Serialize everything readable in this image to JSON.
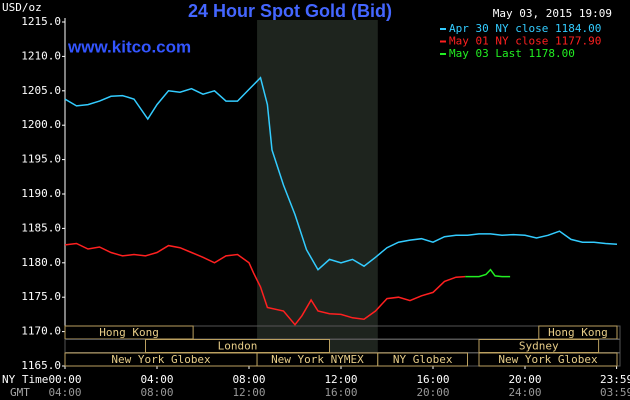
{
  "chart_data": {
    "type": "line",
    "title": "24 Hour Spot Gold (Bid)",
    "timestamp": "May 03, 2015 19:09",
    "site": "www.kitco.com",
    "y_label": "USD/oz",
    "x_label": "NY Time",
    "x2_label": "GMT",
    "xlim": [
      0,
      24
    ],
    "xticks": [
      {
        "value": 0,
        "label": "00:00"
      },
      {
        "value": 4,
        "label": "04:00"
      },
      {
        "value": 8,
        "label": "08:00"
      },
      {
        "value": 12,
        "label": "12:00"
      },
      {
        "value": 16,
        "label": "16:00"
      },
      {
        "value": 20,
        "label": "20:00"
      },
      {
        "value": 23.983,
        "label": "23:59"
      }
    ],
    "x2lim": [
      4,
      28
    ],
    "x2ticks": [
      {
        "value": 4,
        "label": "04:00"
      },
      {
        "value": 8,
        "label": "08:00"
      },
      {
        "value": 12,
        "label": "12:00"
      },
      {
        "value": 16,
        "label": "16:00"
      },
      {
        "value": 20,
        "label": "20:00"
      },
      {
        "value": 24,
        "label": "24:00"
      },
      {
        "value": 27.983,
        "label": "03:59"
      }
    ],
    "ylim": [
      1165,
      1215
    ],
    "yticks": [
      {
        "value": 1165,
        "label": "1165.0"
      },
      {
        "value": 1170,
        "label": "1170.0"
      },
      {
        "value": 1175,
        "label": "1175.0"
      },
      {
        "value": 1180,
        "label": "1180.0"
      },
      {
        "value": 1185,
        "label": "1185.0"
      },
      {
        "value": 1190,
        "label": "1190.0"
      },
      {
        "value": 1195,
        "label": "1195.0"
      },
      {
        "value": 1200,
        "label": "1200.0"
      },
      {
        "value": 1205,
        "label": "1205.0"
      },
      {
        "value": 1210,
        "label": "1210.0"
      },
      {
        "value": 1215,
        "label": "1215.0"
      }
    ],
    "series": [
      {
        "name": "Apr 30 NY close 1184.00",
        "color": "#33ccff",
        "x": [
          0,
          0.5,
          1,
          1.5,
          2,
          2.5,
          3,
          3.6,
          4,
          4.5,
          5,
          5.5,
          6,
          6.5,
          7,
          7.5,
          8,
          8.5,
          8.8,
          9,
          9.5,
          10,
          10.5,
          11,
          11.5,
          12,
          12.5,
          13,
          13.5,
          14,
          14.5,
          15,
          15.5,
          16,
          16.5,
          17,
          17.5,
          18,
          18.5,
          19,
          19.5,
          20,
          20.5,
          21,
          21.5,
          22,
          22.5,
          23,
          23.5,
          24
        ],
        "values": [
          1203.8,
          1202.8,
          1203.0,
          1203.5,
          1204.2,
          1204.3,
          1203.8,
          1200.9,
          1203.0,
          1205.0,
          1204.8,
          1205.3,
          1204.5,
          1205.0,
          1203.5,
          1203.5,
          1205.2,
          1206.9,
          1203.0,
          1196.4,
          1191.3,
          1187.0,
          1181.9,
          1179.0,
          1180.5,
          1180.0,
          1180.5,
          1179.5,
          1180.8,
          1182.2,
          1183.0,
          1183.3,
          1183.5,
          1183.0,
          1183.8,
          1184.0,
          1184.0,
          1184.2,
          1184.2,
          1184.0,
          1184.1,
          1184.0,
          1183.6,
          1184.0,
          1184.6,
          1183.4,
          1183.0,
          1183.0,
          1182.8,
          1182.7
        ]
      },
      {
        "name": "May 01 NY close 1177.90",
        "color": "#ff2020",
        "x": [
          0,
          0.5,
          1,
          1.5,
          2,
          2.5,
          3,
          3.5,
          4,
          4.5,
          5,
          5.5,
          6,
          6.5,
          7,
          7.5,
          8,
          8.2,
          8.5,
          8.8,
          9.5,
          10,
          10.3,
          10.7,
          11,
          11.5,
          12,
          12.5,
          13,
          13.5,
          14,
          14.5,
          15,
          15.5,
          16,
          16.5,
          17,
          17.4
        ],
        "values": [
          1182.6,
          1182.8,
          1182.0,
          1182.3,
          1181.5,
          1181.0,
          1181.2,
          1181.0,
          1181.5,
          1182.5,
          1182.2,
          1181.5,
          1180.8,
          1180.0,
          1181.0,
          1181.2,
          1180.0,
          1178.5,
          1176.5,
          1173.5,
          1173.0,
          1171.0,
          1172.3,
          1174.6,
          1173.0,
          1172.6,
          1172.5,
          1172.0,
          1171.8,
          1173.0,
          1174.8,
          1175.0,
          1174.5,
          1175.2,
          1175.7,
          1177.3,
          1177.9,
          1178.0
        ]
      },
      {
        "name": "May 03 Last 1178.00",
        "color": "#22ee22",
        "x": [
          17.4,
          18,
          18.3,
          18.5,
          18.7,
          19,
          19.35
        ],
        "values": [
          1178.0,
          1178.0,
          1178.3,
          1179.0,
          1178.1,
          1178.0,
          1178.0
        ]
      }
    ],
    "session_rows": [
      [
        {
          "label": "Hong Kong",
          "start": 0,
          "end": 5.57
        },
        {
          "label": "Hong Kong",
          "start": 20.6,
          "end": 24
        }
      ],
      [
        {
          "label": "London",
          "start": 3.5,
          "end": 11.5
        },
        {
          "label": "Sydney",
          "start": 18,
          "end": 23.2
        }
      ],
      [
        {
          "label": "New York Globex",
          "start": 0,
          "end": 8.35
        },
        {
          "label": "New York NYMEX",
          "start": 8.35,
          "end": 13.6
        },
        {
          "label": "NY Globex",
          "start": 13.6,
          "end": 17.5
        },
        {
          "label": "New York Globex",
          "start": 18,
          "end": 24
        }
      ]
    ]
  }
}
